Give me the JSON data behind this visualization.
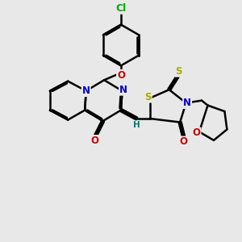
{
  "bg_color": "#e8e8e8",
  "bond_color": "#000000",
  "bond_width": 1.8,
  "atom_colors": {
    "C": "#000000",
    "N": "#0000cc",
    "O": "#cc0000",
    "S": "#aaaa00",
    "Cl": "#00aa00",
    "H": "#007777"
  },
  "font_size": 8.5,
  "fig_size": [
    3.0,
    3.0
  ],
  "dpi": 100
}
